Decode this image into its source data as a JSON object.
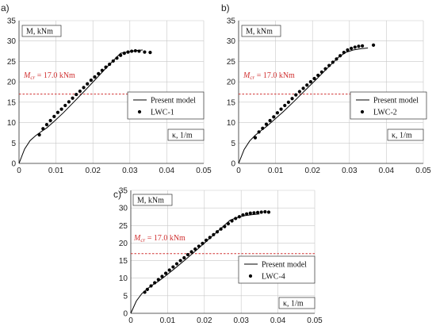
{
  "chart_data": [
    {
      "type": "line",
      "panel_label": "a)",
      "ylabel_text": "M, kNm",
      "xlabel_text": "κ, 1/m",
      "xlim": [
        0,
        0.05
      ],
      "ylim": [
        0,
        35
      ],
      "xticks": [
        "0",
        "0.01",
        "0.02",
        "0.03",
        "0.04",
        "0.05"
      ],
      "yticks": [
        "0",
        "5",
        "10",
        "15",
        "20",
        "25",
        "30",
        "35"
      ],
      "grid": true,
      "legend_placement": "lower-right",
      "reference_line": {
        "label": "Mcr = 17.0 kNm",
        "label_main": "M",
        "label_sub": "cr",
        "label_value": " = 17.0 kNm",
        "y": 17.0,
        "color": "#d03030"
      },
      "series": [
        {
          "name": "Present model",
          "style": "line",
          "x": [
            0,
            0.0015,
            0.003,
            0.0045,
            0.006,
            0.0075,
            0.0095,
            0.012,
            0.015,
            0.018,
            0.021,
            0.024,
            0.0275,
            0.03,
            0.032,
            0.0335
          ],
          "y": [
            0,
            3.5,
            5.6,
            6.8,
            7.8,
            8.7,
            10.3,
            12.4,
            15.2,
            18.0,
            20.9,
            23.8,
            27.0,
            27.4,
            27.7,
            27.8
          ]
        },
        {
          "name": "LWC-1",
          "style": "markers",
          "x": [
            0.0055,
            0.0065,
            0.0075,
            0.0085,
            0.0095,
            0.0105,
            0.0115,
            0.0125,
            0.0135,
            0.0145,
            0.0155,
            0.0165,
            0.0175,
            0.0185,
            0.0195,
            0.0205,
            0.0215,
            0.0225,
            0.0235,
            0.0245,
            0.0255,
            0.0265,
            0.0275,
            0.0285,
            0.0295,
            0.0305,
            0.0315,
            0.0325,
            0.034,
            0.0355
          ],
          "y": [
            7.0,
            8.5,
            9.5,
            10.5,
            11.5,
            12.5,
            13.3,
            14.2,
            15.1,
            16.0,
            16.9,
            17.7,
            18.6,
            19.5,
            20.4,
            21.2,
            22.0,
            22.8,
            23.6,
            24.3,
            25.1,
            25.8,
            26.5,
            27.0,
            27.3,
            27.5,
            27.6,
            27.5,
            27.3,
            27.2
          ]
        }
      ]
    },
    {
      "type": "line",
      "panel_label": "b)",
      "ylabel_text": "M, kNm",
      "xlabel_text": "κ, 1/m",
      "xlim": [
        0,
        0.05
      ],
      "ylim": [
        0,
        35
      ],
      "xticks": [
        "0",
        "0.01",
        "0.02",
        "0.03",
        "0.04",
        "0.05"
      ],
      "yticks": [
        "0",
        "5",
        "10",
        "15",
        "20",
        "25",
        "30",
        "35"
      ],
      "grid": true,
      "legend_placement": "lower-right",
      "reference_line": {
        "label": "Mcr = 17.0 kNm",
        "label_main": "M",
        "label_sub": "cr",
        "label_value": " = 17.0 kNm",
        "y": 17.0,
        "color": "#d03030"
      },
      "series": [
        {
          "name": "Present model",
          "style": "line",
          "x": [
            0,
            0.0015,
            0.003,
            0.0045,
            0.006,
            0.0075,
            0.0095,
            0.012,
            0.015,
            0.018,
            0.021,
            0.024,
            0.027,
            0.029,
            0.031,
            0.033,
            0.035
          ],
          "y": [
            0,
            3.4,
            5.5,
            6.9,
            8.0,
            9.0,
            10.6,
            12.6,
            15.2,
            17.9,
            20.6,
            23.3,
            26.0,
            27.2,
            27.8,
            28.1,
            28.3
          ]
        },
        {
          "name": "LWC-2",
          "style": "markers",
          "x": [
            0.0045,
            0.0055,
            0.0065,
            0.0075,
            0.0085,
            0.0095,
            0.0105,
            0.0115,
            0.0125,
            0.0135,
            0.0145,
            0.0155,
            0.0165,
            0.0175,
            0.0185,
            0.0195,
            0.0205,
            0.0215,
            0.0225,
            0.0235,
            0.0245,
            0.0255,
            0.0265,
            0.0275,
            0.0285,
            0.0295,
            0.0305,
            0.0315,
            0.0325,
            0.0335,
            0.0365
          ],
          "y": [
            6.3,
            7.7,
            8.6,
            9.6,
            10.5,
            11.4,
            12.4,
            13.3,
            14.2,
            15.0,
            15.9,
            16.8,
            17.6,
            18.4,
            19.2,
            20.0,
            20.8,
            21.6,
            22.4,
            23.2,
            24.0,
            24.8,
            25.6,
            26.4,
            27.2,
            27.8,
            28.2,
            28.5,
            28.7,
            28.8,
            29.0
          ]
        }
      ]
    },
    {
      "type": "line",
      "panel_label": "c)",
      "ylabel_text": "M, kNm",
      "xlabel_text": "κ, 1/m",
      "xlim": [
        0,
        0.05
      ],
      "ylim": [
        0,
        35
      ],
      "xticks": [
        "0",
        "0.01",
        "0.02",
        "0.03",
        "0.04",
        "0.05"
      ],
      "yticks": [
        "0",
        "5",
        "10",
        "15",
        "20",
        "25",
        "30",
        "35"
      ],
      "grid": true,
      "legend_placement": "center-right",
      "reference_line": {
        "label": "Mcr = 17.0 kNm",
        "label_main": "M",
        "label_sub": "cr",
        "label_value": " = 17.0 kNm",
        "y": 17.0,
        "color": "#d03030"
      },
      "series": [
        {
          "name": "Present model",
          "style": "line",
          "x": [
            0,
            0.0015,
            0.003,
            0.0045,
            0.006,
            0.0075,
            0.0095,
            0.012,
            0.015,
            0.018,
            0.021,
            0.024,
            0.027,
            0.029,
            0.031,
            0.033,
            0.035
          ],
          "y": [
            0,
            3.5,
            5.6,
            7.0,
            8.1,
            9.1,
            10.7,
            12.8,
            15.4,
            18.1,
            20.9,
            23.7,
            26.5,
            27.3,
            27.8,
            28.1,
            28.3
          ]
        },
        {
          "name": "LWC-4",
          "style": "markers",
          "x": [
            0.0038,
            0.0045,
            0.0055,
            0.0065,
            0.0075,
            0.0085,
            0.0095,
            0.0105,
            0.0115,
            0.0125,
            0.0135,
            0.0145,
            0.0155,
            0.0165,
            0.0175,
            0.0185,
            0.0195,
            0.0205,
            0.0215,
            0.0225,
            0.0235,
            0.0245,
            0.0255,
            0.0265,
            0.0275,
            0.0285,
            0.0295,
            0.0305,
            0.0315,
            0.0325,
            0.0335,
            0.0345,
            0.0355,
            0.0365,
            0.0375
          ],
          "y": [
            6.0,
            6.8,
            7.8,
            8.7,
            9.6,
            10.5,
            11.4,
            12.3,
            13.2,
            14.1,
            15.0,
            15.8,
            16.7,
            17.5,
            18.3,
            19.1,
            19.9,
            20.8,
            21.6,
            22.4,
            23.2,
            24.0,
            24.7,
            25.5,
            26.3,
            27.0,
            27.5,
            28.0,
            28.3,
            28.5,
            28.6,
            28.7,
            28.8,
            28.9,
            28.8
          ]
        }
      ]
    }
  ]
}
